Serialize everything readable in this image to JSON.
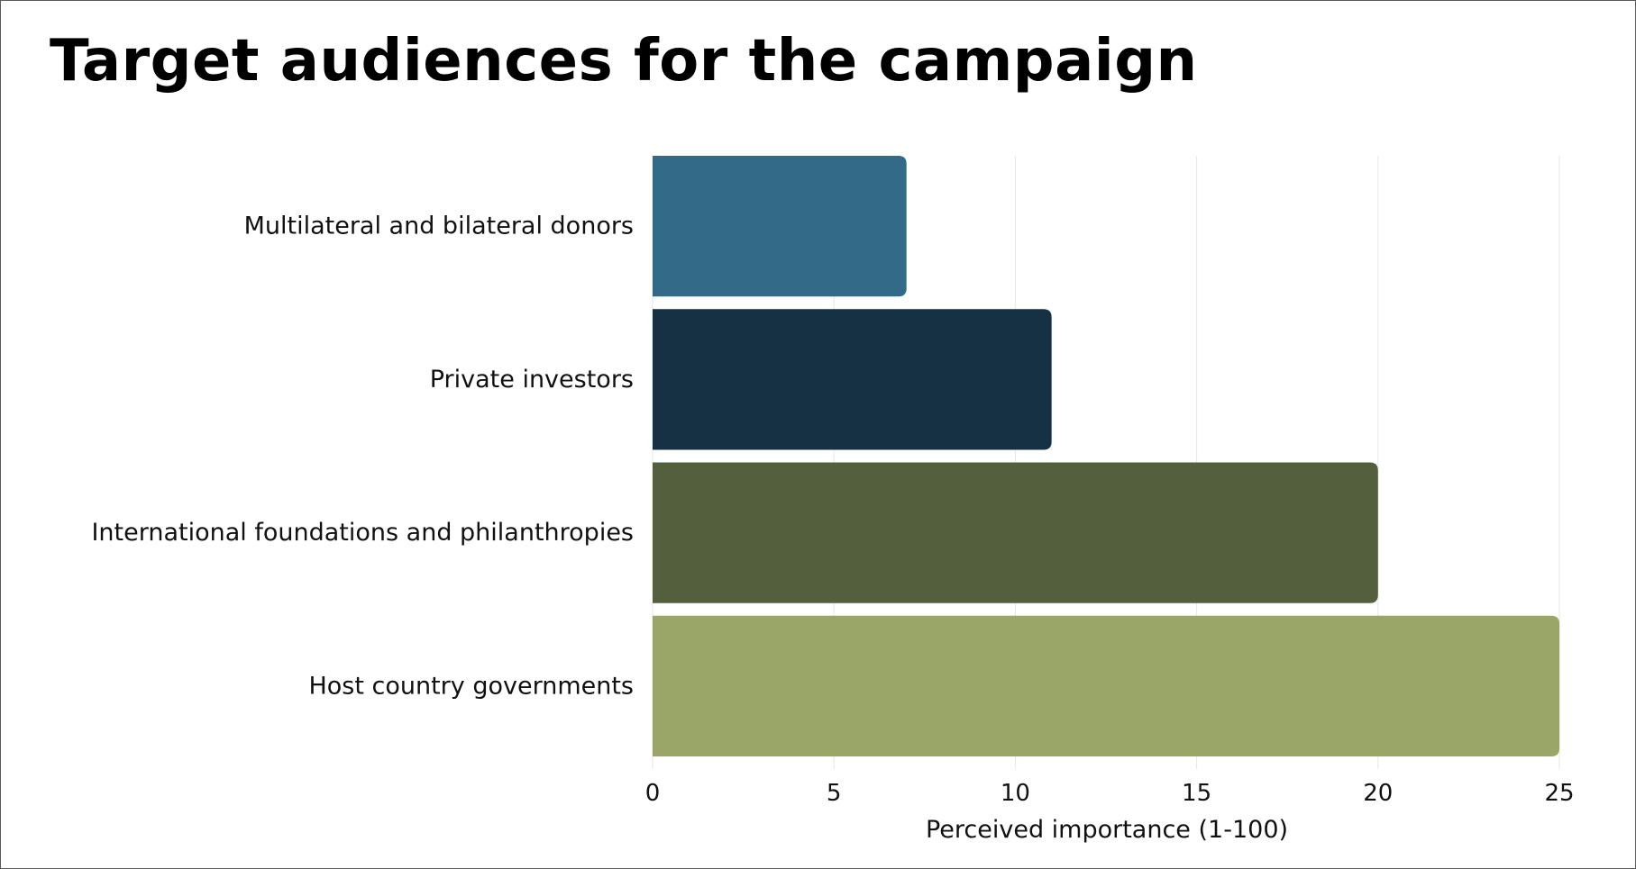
{
  "chart_data": {
    "type": "bar",
    "orientation": "horizontal",
    "title": "Target audiences for the campaign",
    "xlabel": "Perceived importance (1-100)",
    "ylabel": "",
    "categories": [
      "Multilateral and bilateral donors",
      "Private investors",
      "International foundations and philanthropies",
      "Host country governments"
    ],
    "values": [
      7,
      11,
      20,
      25
    ],
    "colors": [
      "#336A87",
      "#173144",
      "#545F3E",
      "#99A667"
    ],
    "xlim": [
      0,
      25
    ],
    "xticks": [
      "0",
      "5",
      "10",
      "15",
      "20",
      "25"
    ],
    "grid": "vertical"
  }
}
